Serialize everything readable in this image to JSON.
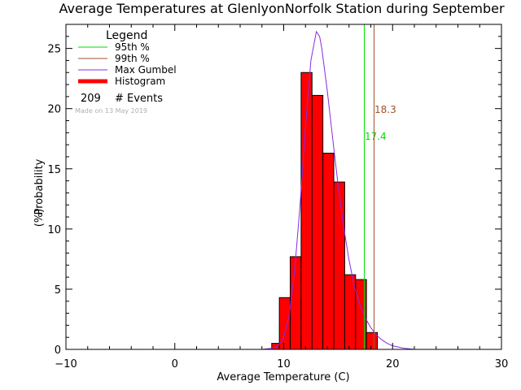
{
  "chart_data": {
    "type": "bar",
    "title": "Average Temperatures at GlenlyonNorfolk Station during September",
    "xlabel": "Average Temperature (C)",
    "ylabel": "Probability",
    "ylabel_unit": "(%)",
    "xlim": [
      -10,
      30
    ],
    "ylim": [
      0,
      27
    ],
    "x_ticks": [
      -10,
      0,
      10,
      20,
      30
    ],
    "y_ticks": [
      0,
      5,
      10,
      15,
      20,
      25
    ],
    "histogram": {
      "name": "Histogram",
      "color": "#ff0000",
      "bins": [
        {
          "x0": 8.9,
          "x1": 9.6,
          "value": 0.5
        },
        {
          "x0": 9.6,
          "x1": 10.6,
          "value": 4.3
        },
        {
          "x0": 10.6,
          "x1": 11.6,
          "value": 7.7
        },
        {
          "x0": 11.6,
          "x1": 12.6,
          "value": 23.0
        },
        {
          "x0": 12.6,
          "x1": 13.6,
          "value": 21.1
        },
        {
          "x0": 13.6,
          "x1": 14.6,
          "value": 16.3
        },
        {
          "x0": 14.6,
          "x1": 15.6,
          "value": 13.9
        },
        {
          "x0": 15.6,
          "x1": 16.6,
          "value": 6.2
        },
        {
          "x0": 16.6,
          "x1": 17.6,
          "value": 5.8
        },
        {
          "x0": 17.6,
          "x1": 18.6,
          "value": 1.4
        }
      ]
    },
    "gumbel": {
      "name": "Max Gumbel",
      "color": "#8a2be2",
      "x": [
        8.0,
        9.0,
        9.5,
        10.0,
        10.5,
        11.0,
        11.5,
        12.0,
        12.5,
        13.0,
        13.3,
        13.5,
        14.0,
        14.5,
        15.0,
        15.5,
        16.0,
        16.5,
        17.0,
        17.5,
        18.0,
        18.5,
        19.0,
        19.5,
        20.0,
        21.0,
        22.0
      ],
      "y": [
        0.0,
        0.1,
        0.3,
        1.0,
        2.8,
        6.5,
        12.0,
        18.5,
        24.0,
        26.4,
        26.0,
        25.0,
        21.5,
        17.5,
        13.6,
        10.2,
        7.4,
        5.2,
        3.7,
        2.6,
        1.8,
        1.2,
        0.8,
        0.5,
        0.3,
        0.1,
        0.0
      ]
    },
    "percentiles": [
      {
        "name": "95th %",
        "value": 17.4,
        "label": "17.4",
        "color": "#00dd00"
      },
      {
        "name": "99th %",
        "value": 18.3,
        "label": "18.3",
        "color": "#a0522d"
      }
    ],
    "legend": {
      "title": "Legend",
      "position": "top-left",
      "entries": [
        {
          "label": "95th %",
          "color": "#00dd00",
          "style": "line"
        },
        {
          "label": "99th %",
          "color": "#a0522d",
          "style": "line"
        },
        {
          "label": "Max Gumbel",
          "color": "#8a2be2",
          "style": "line"
        },
        {
          "label": "Histogram",
          "color": "#ff0000",
          "style": "thick"
        }
      ],
      "events_count": "209",
      "events_label": "# Events"
    },
    "watermark": "Made on 13 May 2019"
  }
}
